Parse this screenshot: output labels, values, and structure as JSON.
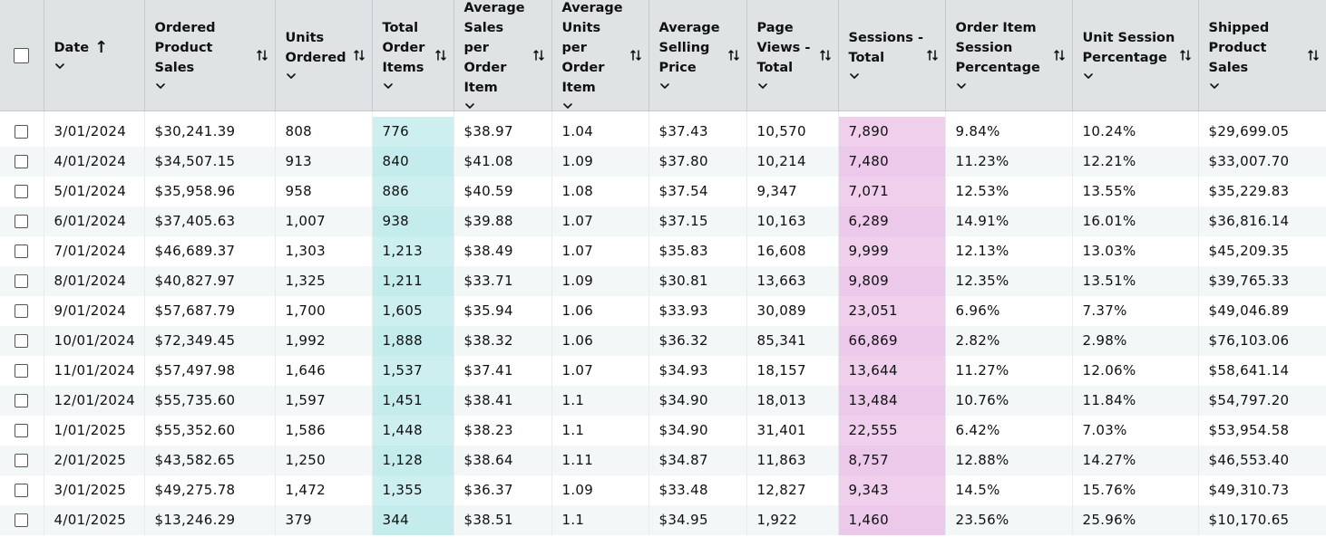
{
  "columns": [
    {
      "key": "date",
      "label": "Date"
    },
    {
      "key": "ordered_product_sales",
      "label": "Ordered Product Sales"
    },
    {
      "key": "units_ordered",
      "label": "Units Ordered"
    },
    {
      "key": "total_order_items",
      "label": "Total Order Items"
    },
    {
      "key": "avg_sales_per_order_item",
      "label": "Average Sales per Order Item"
    },
    {
      "key": "avg_units_per_order_item",
      "label": "Average Units per Order Item"
    },
    {
      "key": "avg_selling_price",
      "label": "Average Selling Price"
    },
    {
      "key": "page_views_total",
      "label": "Page Views - Total"
    },
    {
      "key": "sessions_total",
      "label": "Sessions - Total"
    },
    {
      "key": "order_item_session_pct",
      "label": "Order Item Session Percentage"
    },
    {
      "key": "unit_session_pct",
      "label": "Unit Session Percentage"
    },
    {
      "key": "shipped_product_sales",
      "label": "Shipped Product Sales"
    }
  ],
  "rows": [
    [
      "3/01/2024",
      "$30,241.39",
      "808",
      "776",
      "$38.97",
      "1.04",
      "$37.43",
      "10,570",
      "7,890",
      "9.84%",
      "10.24%",
      "$29,699.05"
    ],
    [
      "4/01/2024",
      "$34,507.15",
      "913",
      "840",
      "$41.08",
      "1.09",
      "$37.80",
      "10,214",
      "7,480",
      "11.23%",
      "12.21%",
      "$33,007.70"
    ],
    [
      "5/01/2024",
      "$35,958.96",
      "958",
      "886",
      "$40.59",
      "1.08",
      "$37.54",
      "9,347",
      "7,071",
      "12.53%",
      "13.55%",
      "$35,229.83"
    ],
    [
      "6/01/2024",
      "$37,405.63",
      "1,007",
      "938",
      "$39.88",
      "1.07",
      "$37.15",
      "10,163",
      "6,289",
      "14.91%",
      "16.01%",
      "$36,816.14"
    ],
    [
      "7/01/2024",
      "$46,689.37",
      "1,303",
      "1,213",
      "$38.49",
      "1.07",
      "$35.83",
      "16,608",
      "9,999",
      "12.13%",
      "13.03%",
      "$45,209.35"
    ],
    [
      "8/01/2024",
      "$40,827.97",
      "1,325",
      "1,211",
      "$33.71",
      "1.09",
      "$30.81",
      "13,663",
      "9,809",
      "12.35%",
      "13.51%",
      "$39,765.33"
    ],
    [
      "9/01/2024",
      "$57,687.79",
      "1,700",
      "1,605",
      "$35.94",
      "1.06",
      "$33.93",
      "30,089",
      "23,051",
      "6.96%",
      "7.37%",
      "$49,046.89"
    ],
    [
      "10/01/2024",
      "$72,349.45",
      "1,992",
      "1,888",
      "$38.32",
      "1.06",
      "$36.32",
      "85,341",
      "66,869",
      "2.82%",
      "2.98%",
      "$76,103.06"
    ],
    [
      "11/01/2024",
      "$57,497.98",
      "1,646",
      "1,537",
      "$37.41",
      "1.07",
      "$34.93",
      "18,157",
      "13,644",
      "11.27%",
      "12.06%",
      "$58,641.14"
    ],
    [
      "12/01/2024",
      "$55,735.60",
      "1,597",
      "1,451",
      "$38.41",
      "1.1",
      "$34.90",
      "18,013",
      "13,484",
      "10.76%",
      "11.84%",
      "$54,797.20"
    ],
    [
      "1/01/2025",
      "$55,352.60",
      "1,586",
      "1,448",
      "$38.23",
      "1.1",
      "$34.90",
      "31,401",
      "22,555",
      "6.42%",
      "7.03%",
      "$53,954.58"
    ],
    [
      "2/01/2025",
      "$43,582.65",
      "1,250",
      "1,128",
      "$38.64",
      "1.11",
      "$34.87",
      "11,863",
      "8,757",
      "12.88%",
      "14.27%",
      "$46,553.40"
    ],
    [
      "3/01/2025",
      "$49,275.78",
      "1,472",
      "1,355",
      "$36.37",
      "1.09",
      "$33.48",
      "12,827",
      "9,343",
      "14.5%",
      "15.76%",
      "$49,310.73"
    ],
    [
      "4/01/2025",
      "$13,246.29",
      "379",
      "344",
      "$38.51",
      "1.1",
      "$34.95",
      "1,922",
      "1,460",
      "23.56%",
      "25.96%",
      "$10,170.65"
    ]
  ],
  "sort": {
    "column": "date",
    "direction": "ascending"
  },
  "highlights": {
    "total_order_items": "#c5ecec",
    "sessions_total": "#ecc8ea"
  },
  "icons": {
    "sort_toggle": "sort-toggle-icon",
    "sort_asc": "sort-ascending-icon",
    "expand": "chevron-down-icon",
    "select": "checkbox"
  }
}
